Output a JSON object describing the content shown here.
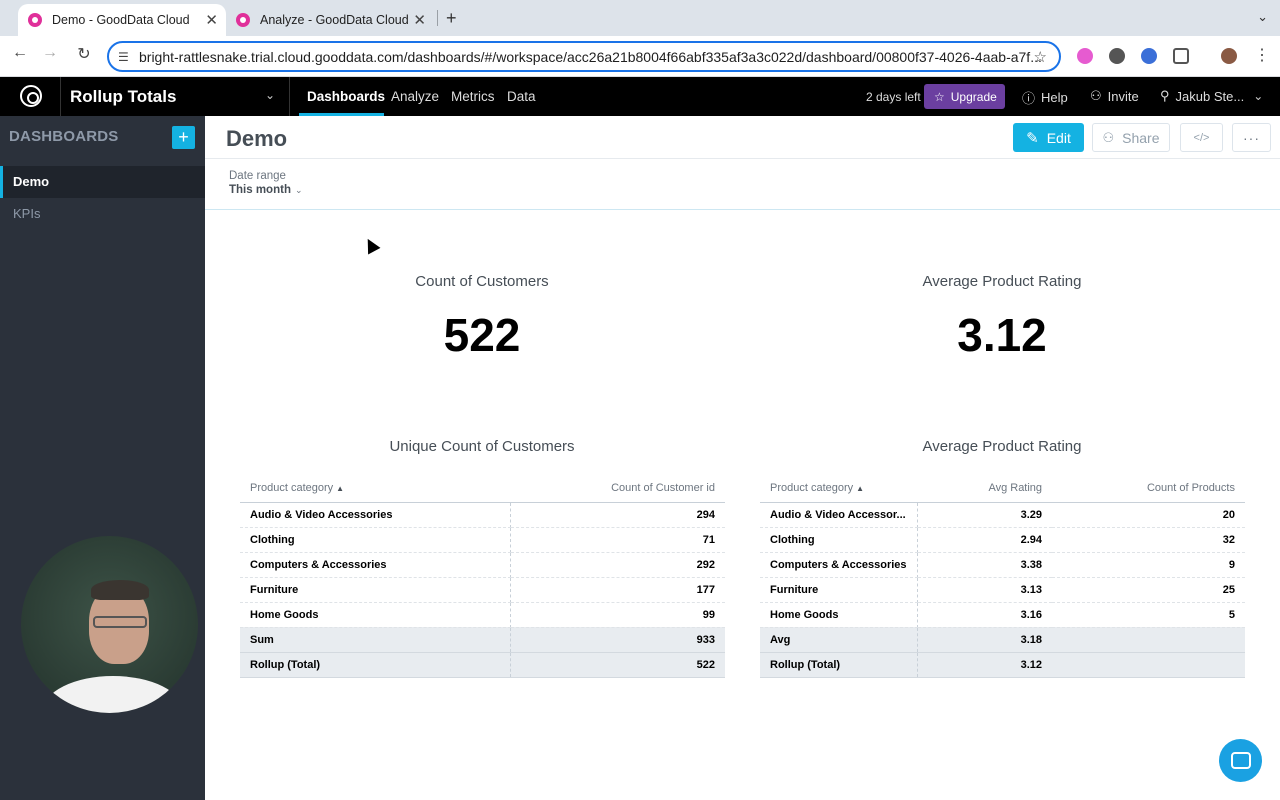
{
  "browser": {
    "tabs": [
      {
        "title": "Demo - GoodData Cloud",
        "active": true
      },
      {
        "title": "Analyze - GoodData Cloud",
        "active": false
      }
    ],
    "url": "bright-rattlesnake.trial.cloud.gooddata.com/dashboards/#/workspace/acc26a21b8004f66abf335af3a3c022d/dashboard/00800f37-4026-4aab-a7f..."
  },
  "app": {
    "workspace_title": "Rollup Totals",
    "nav": [
      "Dashboards",
      "Analyze",
      "Metrics",
      "Data"
    ],
    "trial_text": "2 days left",
    "upgrade_label": "Upgrade",
    "help_label": "Help",
    "invite_label": "Invite",
    "user_label": "Jakub Ste..."
  },
  "sidebar": {
    "title": "DASHBOARDS",
    "items": [
      {
        "label": "Demo",
        "active": true
      },
      {
        "label": "KPIs",
        "active": false
      }
    ]
  },
  "dashboard": {
    "title": "Demo",
    "edit_label": "Edit",
    "share_label": "Share",
    "embed_label": "</>",
    "more_label": "···",
    "filter": {
      "label": "Date range",
      "value": "This month"
    },
    "kpis": [
      {
        "title": "Count of Customers",
        "value": "522"
      },
      {
        "title": "Average Product Rating",
        "value": "3.12"
      }
    ],
    "table1": {
      "title": "Unique Count of Customers",
      "headers": [
        "Product category",
        "Count of Customer id"
      ],
      "rows": [
        [
          "Audio & Video Accessories",
          "294"
        ],
        [
          "Clothing",
          "71"
        ],
        [
          "Computers & Accessories",
          "292"
        ],
        [
          "Furniture",
          "177"
        ],
        [
          "Home Goods",
          "99"
        ]
      ],
      "totals": [
        [
          "Sum",
          "933"
        ],
        [
          "Rollup (Total)",
          "522"
        ]
      ]
    },
    "table2": {
      "title": "Average Product Rating",
      "headers": [
        "Product category",
        "Avg Rating",
        "Count of Products"
      ],
      "rows": [
        [
          "Audio & Video Accessor...",
          "3.29",
          "20"
        ],
        [
          "Clothing",
          "2.94",
          "32"
        ],
        [
          "Computers & Accessories",
          "3.38",
          "9"
        ],
        [
          "Furniture",
          "3.13",
          "25"
        ],
        [
          "Home Goods",
          "3.16",
          "5"
        ]
      ],
      "totals": [
        [
          "Avg",
          "3.18",
          ""
        ],
        [
          "Rollup (Total)",
          "3.12",
          ""
        ]
      ]
    }
  },
  "colors": {
    "accent": "#14b2e2",
    "upgrade": "#6b3fa0",
    "sidebar_bg": "#2b313b"
  }
}
